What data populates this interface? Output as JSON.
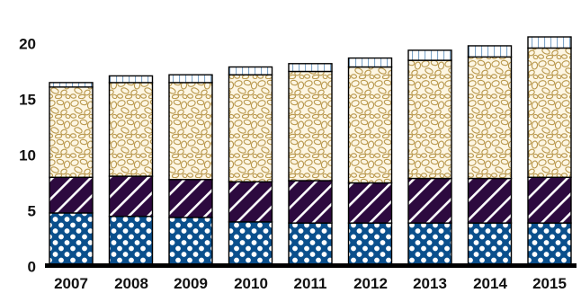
{
  "chart_data": {
    "type": "bar",
    "stacked": true,
    "categories": [
      "2007",
      "2008",
      "2009",
      "2010",
      "2011",
      "2012",
      "2013",
      "2014",
      "2015"
    ],
    "series": [
      {
        "pattern": "dots",
        "color": "#0a4f8c",
        "values": [
          4.6,
          4.3,
          4.2,
          3.8,
          3.7,
          3.7,
          3.7,
          3.7,
          3.7
        ]
      },
      {
        "pattern": "diagonal-stripes",
        "color": "#2d0a3f",
        "values": [
          3.2,
          3.6,
          3.4,
          3.6,
          3.8,
          3.6,
          4.0,
          4.0,
          4.1
        ]
      },
      {
        "pattern": "pebbles",
        "color": "#b8964a",
        "values": [
          8.1,
          8.4,
          8.7,
          9.6,
          9.8,
          10.4,
          10.6,
          10.9,
          11.6
        ]
      },
      {
        "pattern": "vertical-lines",
        "color": "#7fa6c9",
        "values": [
          0.4,
          0.6,
          0.7,
          0.7,
          0.7,
          0.8,
          0.9,
          1.0,
          1.0
        ]
      }
    ],
    "ylim": [
      0,
      20
    ],
    "yticks": [
      0,
      5,
      10,
      15,
      20
    ],
    "xlabel": "",
    "ylabel": "",
    "title": "",
    "grid": false,
    "legend": "none"
  }
}
